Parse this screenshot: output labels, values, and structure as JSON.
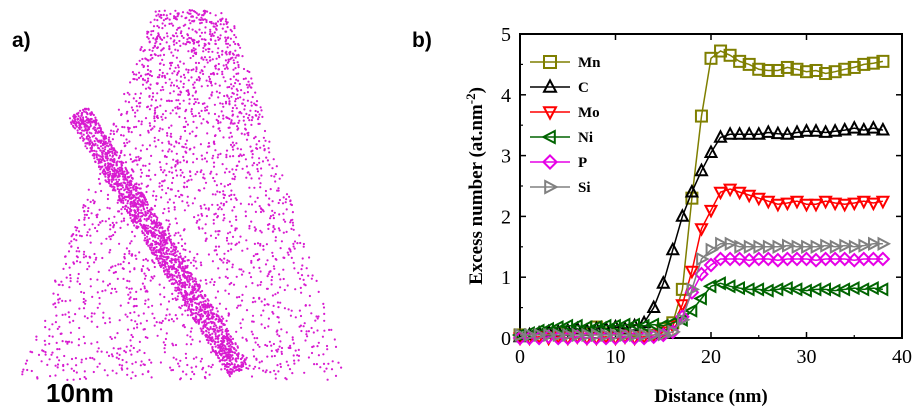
{
  "panel_a": {
    "label": "a)",
    "scale_bar": "10nm",
    "atom_color": "#d81bd0"
  },
  "panel_b": {
    "label": "b)"
  },
  "chart_data": {
    "type": "line",
    "xlabel": "Distance (nm)",
    "ylabel": "Excess number (at.nm",
    "ylabel_superscript": "-2",
    "ylabel_suffix": ")",
    "xlim": [
      0,
      40
    ],
    "ylim": [
      0,
      5
    ],
    "xticks": [
      0,
      10,
      20,
      30,
      40
    ],
    "yticks": [
      0,
      1,
      2,
      3,
      4,
      5
    ],
    "legend_position": "top-left",
    "series": [
      {
        "name": "Mn",
        "marker": "square",
        "color": "#7f7f00",
        "x": [
          0,
          4,
          8,
          12,
          15,
          16,
          17,
          18,
          19,
          20,
          21,
          22,
          23,
          24,
          25,
          26,
          27,
          28,
          29,
          30,
          31,
          32,
          33,
          34,
          35,
          36,
          37,
          38
        ],
        "y": [
          0.05,
          0.08,
          0.18,
          0.12,
          0.15,
          0.25,
          0.8,
          2.3,
          3.65,
          4.6,
          4.72,
          4.65,
          4.55,
          4.5,
          4.42,
          4.4,
          4.4,
          4.45,
          4.42,
          4.38,
          4.4,
          4.35,
          4.38,
          4.42,
          4.45,
          4.5,
          4.52,
          4.55
        ]
      },
      {
        "name": "C",
        "marker": "triangle-up",
        "color": "#000000",
        "x": [
          0,
          1,
          2,
          3,
          4,
          5,
          6,
          7,
          8,
          9,
          10,
          11,
          12,
          13,
          14,
          15,
          16,
          17,
          18,
          19,
          20,
          21,
          22,
          23,
          24,
          25,
          26,
          27,
          28,
          29,
          30,
          31,
          32,
          33,
          34,
          35,
          36,
          37,
          38
        ],
        "y": [
          0.02,
          0.05,
          0.08,
          0.1,
          0.1,
          0.12,
          0.15,
          0.12,
          0.15,
          0.15,
          0.18,
          0.15,
          0.2,
          0.25,
          0.5,
          0.9,
          1.45,
          2.0,
          2.4,
          2.75,
          3.05,
          3.3,
          3.35,
          3.35,
          3.35,
          3.35,
          3.38,
          3.36,
          3.35,
          3.38,
          3.4,
          3.4,
          3.38,
          3.4,
          3.42,
          3.45,
          3.42,
          3.45,
          3.42
        ]
      },
      {
        "name": "Mo",
        "marker": "triangle-down",
        "color": "#ff0000",
        "x": [
          0,
          1,
          2,
          3,
          4,
          5,
          6,
          7,
          8,
          9,
          10,
          11,
          12,
          13,
          14,
          15,
          16,
          17,
          18,
          19,
          20,
          21,
          22,
          23,
          24,
          25,
          26,
          27,
          28,
          29,
          30,
          31,
          32,
          33,
          34,
          35,
          36,
          37,
          38
        ],
        "y": [
          0.0,
          0.0,
          0.02,
          0.0,
          0.02,
          0.0,
          0.02,
          0.0,
          0.0,
          0.02,
          0.0,
          0.02,
          0.0,
          0.02,
          0.05,
          0.1,
          0.2,
          0.55,
          1.1,
          1.8,
          2.1,
          2.4,
          2.45,
          2.4,
          2.35,
          2.3,
          2.25,
          2.2,
          2.22,
          2.25,
          2.2,
          2.2,
          2.25,
          2.22,
          2.2,
          2.22,
          2.25,
          2.22,
          2.25
        ]
      },
      {
        "name": "Ni",
        "marker": "triangle-left",
        "color": "#006400",
        "x": [
          0,
          1,
          2,
          3,
          4,
          5,
          6,
          7,
          8,
          9,
          10,
          11,
          12,
          13,
          14,
          15,
          16,
          17,
          18,
          19,
          20,
          21,
          22,
          23,
          24,
          25,
          26,
          27,
          28,
          29,
          30,
          31,
          32,
          33,
          34,
          35,
          36,
          37,
          38
        ],
        "y": [
          0.05,
          0.08,
          0.12,
          0.15,
          0.18,
          0.2,
          0.2,
          0.18,
          0.18,
          0.2,
          0.2,
          0.22,
          0.22,
          0.2,
          0.22,
          0.2,
          0.25,
          0.3,
          0.45,
          0.65,
          0.85,
          0.9,
          0.85,
          0.82,
          0.8,
          0.8,
          0.78,
          0.8,
          0.82,
          0.8,
          0.78,
          0.8,
          0.8,
          0.78,
          0.8,
          0.82,
          0.8,
          0.82,
          0.8
        ]
      },
      {
        "name": "P",
        "marker": "diamond",
        "color": "#e600e6",
        "x": [
          0,
          1,
          2,
          3,
          4,
          5,
          6,
          7,
          8,
          9,
          10,
          11,
          12,
          13,
          14,
          15,
          16,
          17,
          18,
          19,
          20,
          21,
          22,
          23,
          24,
          25,
          26,
          27,
          28,
          29,
          30,
          31,
          32,
          33,
          34,
          35,
          36,
          37,
          38
        ],
        "y": [
          0.0,
          0.0,
          0.0,
          0.02,
          0.0,
          0.0,
          0.02,
          0.0,
          0.0,
          0.0,
          0.0,
          0.02,
          0.0,
          0.0,
          0.02,
          0.05,
          0.1,
          0.35,
          0.75,
          1.05,
          1.2,
          1.3,
          1.3,
          1.3,
          1.28,
          1.3,
          1.3,
          1.28,
          1.3,
          1.3,
          1.3,
          1.28,
          1.3,
          1.3,
          1.3,
          1.28,
          1.3,
          1.3,
          1.3
        ]
      },
      {
        "name": "Si",
        "marker": "triangle-right",
        "color": "#808080",
        "x": [
          0,
          1,
          2,
          3,
          4,
          5,
          6,
          7,
          8,
          9,
          10,
          11,
          12,
          13,
          14,
          15,
          16,
          17,
          18,
          19,
          20,
          21,
          22,
          23,
          24,
          25,
          26,
          27,
          28,
          29,
          30,
          31,
          32,
          33,
          34,
          35,
          36,
          37,
          38
        ],
        "y": [
          0.05,
          0.05,
          0.05,
          0.05,
          0.05,
          0.05,
          0.05,
          0.05,
          0.05,
          0.05,
          0.05,
          0.05,
          0.05,
          0.05,
          0.05,
          0.06,
          0.1,
          0.3,
          0.8,
          1.3,
          1.45,
          1.55,
          1.55,
          1.5,
          1.5,
          1.5,
          1.5,
          1.5,
          1.52,
          1.5,
          1.5,
          1.5,
          1.52,
          1.5,
          1.52,
          1.5,
          1.52,
          1.55,
          1.55
        ]
      }
    ]
  }
}
